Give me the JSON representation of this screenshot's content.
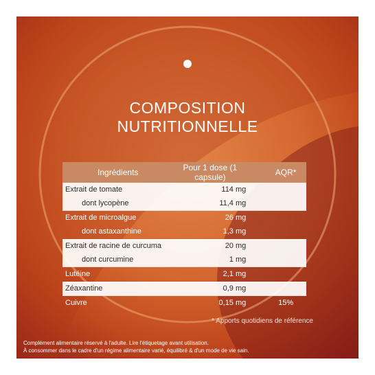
{
  "heading": {
    "line1": "COMPOSITION",
    "line2": "NUTRITIONNELLE"
  },
  "table": {
    "headers": {
      "ingredients": "Ingrédients",
      "dose": "Pour 1 dose (1 capsule)",
      "aqr": "AQR*"
    },
    "rows": [
      {
        "ingredient": "Extrait de tomate",
        "dose": "114 mg",
        "aqr": ""
      },
      {
        "ingredient": "dont lycopène",
        "dose": "11,4 mg",
        "aqr": ""
      },
      {
        "ingredient": "Extrait de microalgue",
        "dose": "26 mg",
        "aqr": ""
      },
      {
        "ingredient": "dont astaxanthine",
        "dose": "1,3 mg",
        "aqr": ""
      },
      {
        "ingredient": "Extrait de racine de curcuma",
        "dose": "20 mg",
        "aqr": ""
      },
      {
        "ingredient": "dont curcumine",
        "dose": "1 mg",
        "aqr": ""
      },
      {
        "ingredient": "Lutéine",
        "dose": "2,1 mg",
        "aqr": ""
      },
      {
        "ingredient": "Zéaxantine",
        "dose": "0,9 mg",
        "aqr": ""
      },
      {
        "ingredient": "Cuivre",
        "dose": "0,15 mg",
        "aqr": "15%"
      }
    ]
  },
  "note": "* Apports quotidiens de référence",
  "footer": {
    "line1": "Complément alimentaire réservé à l'adulte. Lire l'étiquetage avant utilisation.",
    "line2": "À consommer dans le cadre d'un régime alimentaire varié, équilibré & d'un mode de vie sain."
  }
}
